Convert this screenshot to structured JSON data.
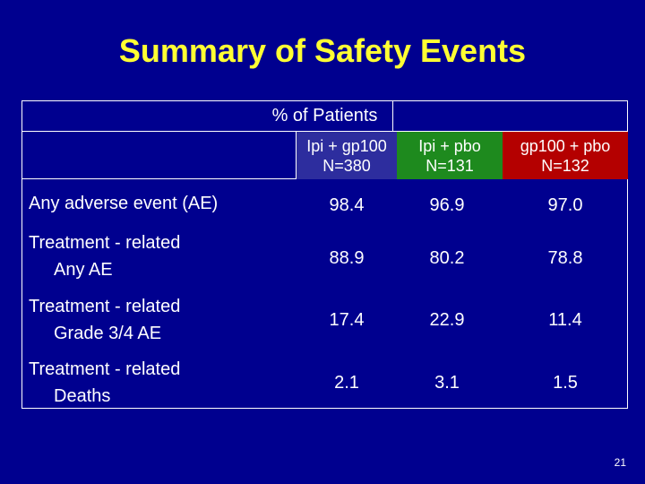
{
  "slide": {
    "title": "Summary of Safety Events",
    "page_number": "21"
  },
  "table": {
    "group_header": "% of Patients",
    "columns": [
      {
        "line1": "Ipi + gp100",
        "line2": "N=380",
        "color": "#2d2d9e"
      },
      {
        "line1": "Ipi + pbo",
        "line2": "N=131",
        "color": "#1e8a1e"
      },
      {
        "line1": "gp100 + pbo",
        "line2": "N=132",
        "color": "#b40000"
      }
    ],
    "rows": [
      {
        "line1": "Any adverse event (AE)",
        "line2": "",
        "values": [
          "98.4",
          "96.9",
          "97.0"
        ]
      },
      {
        "line1": "Treatment - related",
        "line2": "Any AE",
        "values": [
          "88.9",
          "80.2",
          "78.8"
        ]
      },
      {
        "line1": "Treatment - related",
        "line2": "Grade 3/4 AE",
        "values": [
          "17.4",
          "22.9",
          "11.4"
        ]
      },
      {
        "line1": "Treatment - related",
        "line2": "Deaths",
        "values": [
          "2.1",
          "3.1",
          "1.5"
        ]
      }
    ]
  }
}
